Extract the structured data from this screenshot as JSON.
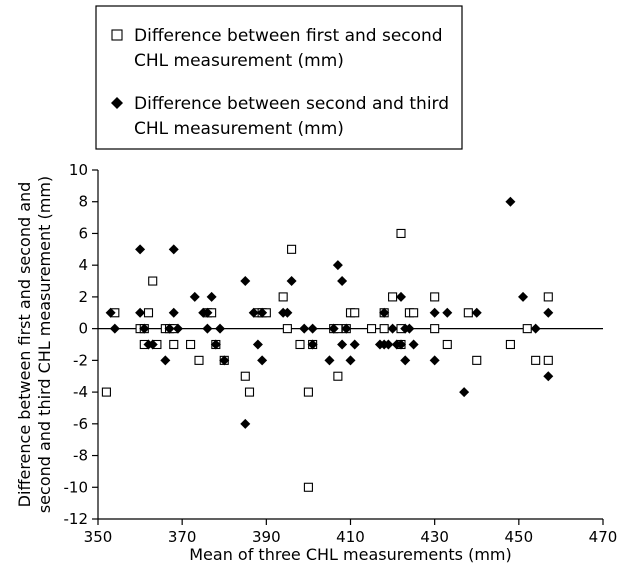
{
  "chart_data": {
    "type": "scatter",
    "xlabel": "Mean of three CHL measurements (mm)",
    "ylabel_lines": [
      "Difference between first and second and",
      "second and third CHL measurement (mm)"
    ],
    "xlim": [
      350,
      470
    ],
    "ylim": [
      -12,
      10
    ],
    "x_ticks": [
      350,
      370,
      390,
      410,
      430,
      450,
      470
    ],
    "y_ticks": [
      -12,
      -10,
      -8,
      -6,
      -4,
      -2,
      0,
      2,
      4,
      6,
      8,
      10
    ],
    "grid": false,
    "legend_position": "top-left",
    "zero_line": 0,
    "series": [
      {
        "name_lines": [
          "Difference between first and second",
          "CHL measurement (mm)"
        ],
        "marker": "open-square",
        "color": "#000000",
        "points": [
          [
            352,
            -4
          ],
          [
            354,
            1
          ],
          [
            360,
            0
          ],
          [
            361,
            -1
          ],
          [
            361,
            0
          ],
          [
            362,
            1
          ],
          [
            363,
            3
          ],
          [
            364,
            -1
          ],
          [
            366,
            0
          ],
          [
            367,
            0
          ],
          [
            368,
            -1
          ],
          [
            368,
            0
          ],
          [
            372,
            -1
          ],
          [
            374,
            -2
          ],
          [
            376,
            1
          ],
          [
            377,
            1
          ],
          [
            378,
            -1
          ],
          [
            380,
            -2
          ],
          [
            385,
            -3
          ],
          [
            386,
            -4
          ],
          [
            388,
            1
          ],
          [
            389,
            1
          ],
          [
            390,
            1
          ],
          [
            394,
            2
          ],
          [
            395,
            0
          ],
          [
            396,
            5
          ],
          [
            398,
            -1
          ],
          [
            400,
            -4
          ],
          [
            400,
            -10
          ],
          [
            401,
            -1
          ],
          [
            406,
            0
          ],
          [
            407,
            -3
          ],
          [
            407,
            0
          ],
          [
            409,
            0
          ],
          [
            410,
            1
          ],
          [
            411,
            1
          ],
          [
            415,
            0
          ],
          [
            418,
            0
          ],
          [
            418,
            1
          ],
          [
            420,
            2
          ],
          [
            422,
            -1
          ],
          [
            422,
            0
          ],
          [
            422,
            6
          ],
          [
            424,
            1
          ],
          [
            425,
            1
          ],
          [
            430,
            0
          ],
          [
            430,
            2
          ],
          [
            433,
            -1
          ],
          [
            438,
            1
          ],
          [
            440,
            -2
          ],
          [
            448,
            -1
          ],
          [
            452,
            0
          ],
          [
            454,
            -2
          ],
          [
            457,
            -2
          ],
          [
            457,
            2
          ]
        ]
      },
      {
        "name_lines": [
          "Difference between second and third",
          "CHL measurement (mm)"
        ],
        "marker": "filled-diamond",
        "color": "#000000",
        "points": [
          [
            353,
            1
          ],
          [
            354,
            0
          ],
          [
            360,
            5
          ],
          [
            360,
            1
          ],
          [
            361,
            0
          ],
          [
            362,
            -1
          ],
          [
            363,
            -1
          ],
          [
            366,
            -2
          ],
          [
            367,
            0
          ],
          [
            368,
            5
          ],
          [
            368,
            1
          ],
          [
            369,
            0
          ],
          [
            373,
            2
          ],
          [
            375,
            1
          ],
          [
            376,
            0
          ],
          [
            376,
            1
          ],
          [
            377,
            2
          ],
          [
            378,
            -1
          ],
          [
            379,
            0
          ],
          [
            380,
            -2
          ],
          [
            385,
            3
          ],
          [
            385,
            -6
          ],
          [
            387,
            1
          ],
          [
            388,
            -1
          ],
          [
            389,
            -2
          ],
          [
            389,
            1
          ],
          [
            394,
            1
          ],
          [
            395,
            1
          ],
          [
            396,
            3
          ],
          [
            399,
            0
          ],
          [
            401,
            0
          ],
          [
            401,
            -1
          ],
          [
            405,
            -2
          ],
          [
            406,
            0
          ],
          [
            407,
            4
          ],
          [
            408,
            -1
          ],
          [
            408,
            3
          ],
          [
            409,
            0
          ],
          [
            410,
            -2
          ],
          [
            411,
            -1
          ],
          [
            417,
            -1
          ],
          [
            418,
            -1
          ],
          [
            418,
            1
          ],
          [
            419,
            -1
          ],
          [
            420,
            0
          ],
          [
            421,
            -1
          ],
          [
            422,
            2
          ],
          [
            422,
            -1
          ],
          [
            423,
            -2
          ],
          [
            423,
            0
          ],
          [
            424,
            0
          ],
          [
            425,
            -1
          ],
          [
            430,
            1
          ],
          [
            430,
            -2
          ],
          [
            433,
            1
          ],
          [
            437,
            -4
          ],
          [
            440,
            1
          ],
          [
            448,
            8
          ],
          [
            451,
            2
          ],
          [
            454,
            0
          ],
          [
            457,
            -3
          ],
          [
            457,
            1
          ]
        ]
      }
    ]
  }
}
